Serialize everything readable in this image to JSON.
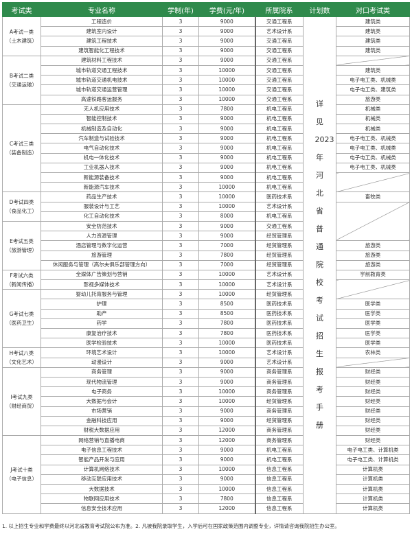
{
  "header": [
    "考试类",
    "专业名称",
    "学制(年)",
    "学费(元/年)",
    "所属院系",
    "计划数",
    "对口考试类"
  ],
  "plan_text": "详见2023年河北省普通院校考试招生报考手册",
  "groups": [
    {
      "label": "A考试一类",
      "sub": "（土木建筑）",
      "majors": [
        [
          "工程造价",
          "3",
          "9000",
          "交通工程系"
        ],
        [
          "建筑室内设计",
          "3",
          "9000",
          "艺术设计系"
        ],
        [
          "建筑工程技术",
          "3",
          "9000",
          "交通工程系"
        ],
        [
          "建筑智能化工程技术",
          "3",
          "9000",
          "交通工程系"
        ]
      ]
    },
    {
      "label": "B考试二类",
      "sub": "（交通运输）",
      "majors": [
        [
          "建筑材料工程技术",
          "3",
          "9000",
          "交通工程系"
        ],
        [
          "城市轨道交通工程技术",
          "3",
          "10000",
          "交通工程系"
        ],
        [
          "城市轨道交通机电技术",
          "3",
          "10000",
          "交通工程系"
        ],
        [
          "城市轨道交通运营管理",
          "3",
          "10000",
          "交通工程系"
        ],
        [
          "高速铁路客运服务",
          "3",
          "10000",
          "交通工程系"
        ]
      ]
    },
    {
      "label": "C考试三类",
      "sub": "（装备制造）",
      "majors": [
        [
          "无人机应用技术",
          "3",
          "7800",
          "机电工程系"
        ],
        [
          "智能控制技术",
          "3",
          "9000",
          "机电工程系"
        ],
        [
          "机械制造及自动化",
          "3",
          "9000",
          "机电工程系"
        ],
        [
          "汽车制造与试验技术",
          "3",
          "9000",
          "机电工程系"
        ],
        [
          "电气自动化技术",
          "3",
          "9000",
          "机电工程系"
        ],
        [
          "机电一体化技术",
          "3",
          "9000",
          "机电工程系"
        ],
        [
          "工业机器人技术",
          "3",
          "9000",
          "机电工程系"
        ],
        [
          "新能源装备技术",
          "3",
          "9000",
          "机电工程系"
        ],
        [
          "新能源汽车技术",
          "3",
          "10000",
          "机电工程系"
        ]
      ]
    },
    {
      "label": "D考试四类",
      "sub": "（食品化工）",
      "majors": [
        [
          "药品生产技术",
          "3",
          "10000",
          "医药技术系"
        ],
        [
          "服装设计与工艺",
          "3",
          "10000",
          "艺术设计系"
        ],
        [
          "化工自动化技术",
          "3",
          "8000",
          "机电工程系"
        ]
      ]
    },
    {
      "label": "E考试五类",
      "sub": "（旅游管理）",
      "majors": [
        [
          "安全防范技术",
          "3",
          "9000",
          "交通工程系"
        ],
        [
          "人力资源管理",
          "3",
          "9000",
          "经贸管理系"
        ],
        [
          "酒店管理与数字化运营",
          "3",
          "7000",
          "经贸管理系"
        ],
        [
          "旅游管理",
          "3",
          "7800",
          "经贸管理系"
        ],
        [
          "休闲服务与管理（高尔夫俱乐部管理方向）",
          "3",
          "7000",
          "经贸管理系"
        ]
      ]
    },
    {
      "label": "F考试六类",
      "sub": "（新闻传播）",
      "majors": [
        [
          "全媒体广告策划与营销",
          "3",
          "10000",
          "艺术设计系"
        ],
        [
          "影视多媒体技术",
          "3",
          "10000",
          "艺术设计系"
        ]
      ]
    },
    {
      "label": "G考试七类",
      "sub": "（医药卫生）",
      "majors": [
        [
          "婴幼儿托育服务与管理",
          "3",
          "10000",
          "经贸管理系"
        ],
        [
          "护理",
          "3",
          "8500",
          "医药技术系"
        ],
        [
          "助产",
          "3",
          "8500",
          "医药技术系"
        ],
        [
          "药学",
          "3",
          "7800",
          "医药技术系"
        ],
        [
          "康复治疗技术",
          "3",
          "7800",
          "医药技术系"
        ],
        [
          "医学检验技术",
          "3",
          "10000",
          "医药技术系"
        ]
      ]
    },
    {
      "label": "H考试八类",
      "sub": "（文化艺术）",
      "majors": [
        [
          "环境艺术设计",
          "3",
          "10000",
          "艺术设计系"
        ],
        [
          "动漫设计",
          "3",
          "9000",
          "艺术设计系"
        ]
      ]
    },
    {
      "label": "I考试九类",
      "sub": "（财经商贸）",
      "majors": [
        [
          "商务管理",
          "3",
          "9000",
          "商务管理系"
        ],
        [
          "现代物流管理",
          "3",
          "9000",
          "商务管理系"
        ],
        [
          "电子商务",
          "3",
          "10000",
          "商务管理系"
        ],
        [
          "大数据与会计",
          "3",
          "10000",
          "经贸管理系"
        ],
        [
          "市场营销",
          "3",
          "9000",
          "商务管理系"
        ],
        [
          "金融科技应用",
          "3",
          "9000",
          "经贸管理系"
        ],
        [
          "财税大数据应用",
          "3",
          "12000",
          "商务管理系"
        ]
      ]
    },
    {
      "label": "J考试十类",
      "sub": "（电子信息）",
      "majors": [
        [
          "网络营销与直播电商",
          "3",
          "12000",
          "商务管理系"
        ],
        [
          "电子信息工程技术",
          "3",
          "9000",
          "机电工程系"
        ],
        [
          "智能产品开发与应用",
          "3",
          "9000",
          "机电工程系"
        ],
        [
          "计算机网络技术",
          "3",
          "10000",
          "信息工程系"
        ],
        [
          "移动互联应用技术",
          "3",
          "9000",
          "信息工程系"
        ],
        [
          "大数据技术",
          "3",
          "10000",
          "信息工程系"
        ],
        [
          "物联网应用技术",
          "3",
          "7800",
          "信息工程系"
        ],
        [
          "信息安全技术应用",
          "3",
          "12000",
          "信息工程系"
        ]
      ]
    }
  ],
  "targets": [
    [
      "建筑类",
      1
    ],
    [
      "建筑类",
      1
    ],
    [
      "建筑类",
      1
    ],
    [
      "建筑类",
      1
    ],
    [
      "",
      1
    ],
    [
      "建筑类",
      1
    ],
    [
      "电子电工类、机械类",
      1
    ],
    [
      "电子电工类、建筑类",
      1
    ],
    [
      "旅游类",
      1
    ],
    [
      "机械类",
      1
    ],
    [
      "机械类",
      1
    ],
    [
      "机械类",
      1
    ],
    [
      "电子电工类、机械类",
      1
    ],
    [
      "电子电工类、机械类",
      1
    ],
    [
      "电子电工类、机械类",
      1
    ],
    [
      "电子电工类、机械类",
      1
    ],
    [
      "",
      2
    ],
    [
      "畜牧类",
      1
    ],
    [
      "",
      4
    ],
    [
      "旅游类",
      1
    ],
    [
      "旅游类",
      1
    ],
    [
      "旅游类",
      1
    ],
    [
      "学前教育类",
      1
    ],
    [
      "",
      2
    ],
    [
      "医学类",
      1
    ],
    [
      "医学类",
      1
    ],
    [
      "医学类",
      1
    ],
    [
      "医学类",
      1
    ],
    [
      "医学类",
      1
    ],
    [
      "农林类",
      1
    ],
    [
      "",
      1
    ],
    [
      "财经类",
      1
    ],
    [
      "财经类",
      1
    ],
    [
      "财经类",
      1
    ],
    [
      "财经类",
      1
    ],
    [
      "财经类",
      1
    ],
    [
      "财经类",
      1
    ],
    [
      "财经类",
      1
    ],
    [
      "财经类",
      1
    ],
    [
      "电子电工类、计算机类",
      1
    ],
    [
      "电子电工类、计算机类",
      1
    ],
    [
      "计算机类",
      1
    ],
    [
      "计算机类",
      1
    ],
    [
      "计算机类",
      1
    ],
    [
      "计算机类",
      1
    ],
    [
      "计算机类",
      1
    ]
  ],
  "colors": {
    "header_bg": "#2f8a4c",
    "header_text": "#ffffff"
  },
  "footnote": "1. 以上招生专业和学费最终以河北省教育考试院公布为准。2. 凡被我院录取学生，入学后可在国家政策范围内调整专业，详情请咨询我院招生办公室。"
}
